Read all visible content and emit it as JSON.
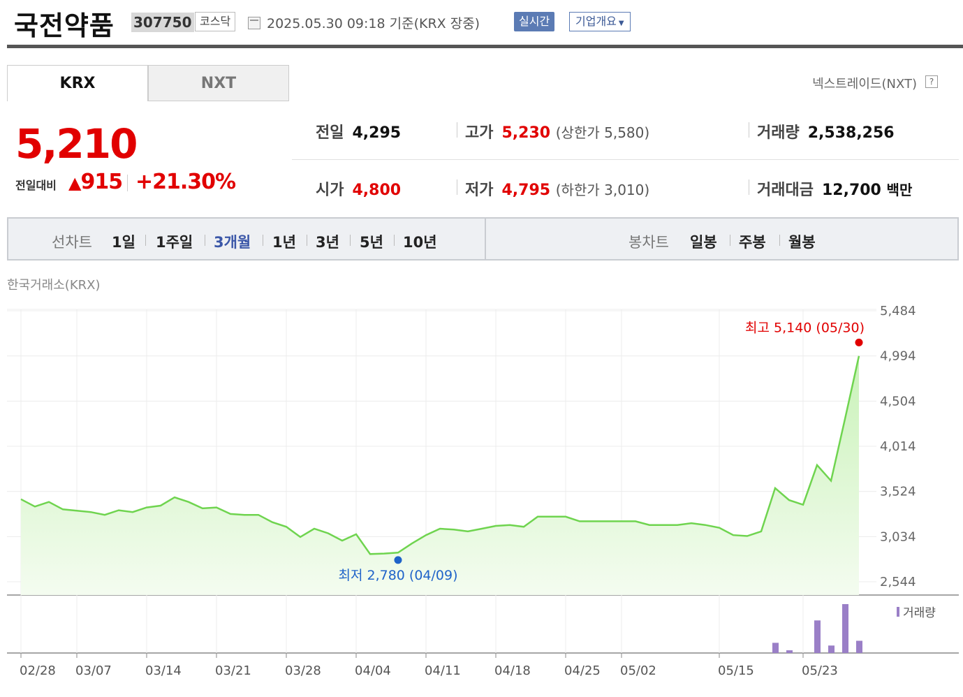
{
  "header": {
    "name": "국전약품",
    "code": "307750",
    "market": "코스닥",
    "datetime": "2025.05.30 09:18 기준(KRX 장중)",
    "realtime": "실시간",
    "company_info": "기업개요",
    "calendar_icon": "calendar-icon"
  },
  "tabs": {
    "krx": "KRX",
    "nxt": "NXT",
    "nxt_link": "넥스트레이드(NXT)",
    "help": "?"
  },
  "quote": {
    "price": "5,210",
    "change_label": "전일대비",
    "change_arrow": "▲",
    "change": "915",
    "change_pct": "+21.30%",
    "prev_label": "전일",
    "prev": "4,295",
    "open_label": "시가",
    "open": "4,800",
    "high_label": "고가",
    "high": "5,230",
    "upper_limit": "(상한가 5,580)",
    "low_label": "저가",
    "low": "4,795",
    "lower_limit": "(하한가 3,010)",
    "volume_label": "거래량",
    "volume": "2,538,256",
    "amount_label": "거래대금",
    "amount": "12,700",
    "amount_unit": "백만"
  },
  "periods": {
    "line_label": "선차트",
    "line_items": [
      "1일",
      "1주일",
      "3개월",
      "1년",
      "3년",
      "5년",
      "10년"
    ],
    "active": "3개월",
    "candle_label": "봉차트",
    "candle_items": [
      "일봉",
      "주봉",
      "월봉"
    ]
  },
  "colors": {
    "up": "#e10000",
    "line": "#6fd44f",
    "fill_top": "#c9f2b8",
    "volume": "#9a7fc7",
    "low": "#1f63c9"
  },
  "chart_data": {
    "type": "area",
    "source": "한국거래소(KRX)",
    "y_ticks": [
      "5,484",
      "4,994",
      "4,504",
      "4,014",
      "3,524",
      "3,034",
      "2,544"
    ],
    "ylim": [
      2544,
      5484
    ],
    "x_tick_labels": [
      "02/28",
      "03/07",
      "03/14",
      "03/21",
      "03/28",
      "04/04",
      "04/11",
      "04/18",
      "04/25",
      "05/02",
      "05/15",
      "05/23"
    ],
    "x_tick_index": [
      0,
      4,
      9,
      14,
      19,
      24,
      29,
      34,
      39,
      43,
      50,
      56
    ],
    "series": [
      {
        "values": [
          3440,
          3360,
          3410,
          3330,
          3315,
          3300,
          3270,
          3320,
          3300,
          3350,
          3370,
          3460,
          3410,
          3340,
          3350,
          3280,
          3270,
          3270,
          3190,
          3140,
          3030,
          3120,
          3070,
          2990,
          3060,
          2845,
          2850,
          2860,
          2960,
          3050,
          3120,
          3110,
          3090,
          3120,
          3150,
          3160,
          3140,
          3250,
          3250,
          3250,
          3200,
          3200,
          3200,
          3200,
          3200,
          3160,
          3160,
          3160,
          3180,
          3160,
          3130,
          3050,
          3040,
          3090,
          3560,
          3430,
          3380,
          3810,
          3640,
          4310,
          4994
        ]
      }
    ],
    "volume": {
      "label": "거래량",
      "values": [
        0,
        0,
        0,
        0,
        0,
        0,
        0,
        0,
        0,
        0,
        0,
        0,
        0,
        0,
        0,
        0,
        0,
        0,
        0,
        0,
        0,
        0,
        0,
        0,
        0,
        0,
        0,
        0,
        0,
        0,
        0,
        0,
        0,
        0,
        0,
        0,
        0,
        0,
        0,
        0,
        0,
        0,
        0,
        0,
        0,
        0,
        0,
        0,
        0,
        0,
        0,
        0,
        0,
        0,
        15,
        4,
        0,
        48,
        11,
        72,
        18
      ]
    },
    "annotations": {
      "high": {
        "label": "최고 5,140 (05/30)",
        "value": 5140,
        "index": 60
      },
      "low": {
        "label": "최저 2,780 (04/09)",
        "value": 2780,
        "index": 27
      }
    }
  }
}
